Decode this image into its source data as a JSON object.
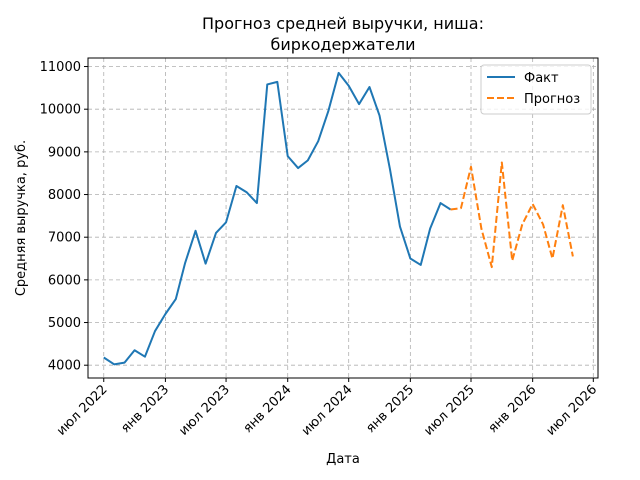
{
  "chart_data": {
    "type": "line",
    "title_lines": [
      "Прогноз средней выручки, ниша:",
      "биркодержатели"
    ],
    "xlabel": "Дата",
    "ylabel": "Средняя выручка, руб.",
    "ylim": [
      3700,
      11200
    ],
    "yticks": [
      4000,
      5000,
      6000,
      7000,
      8000,
      9000,
      10000,
      11000
    ],
    "xlim": [
      "2022-05-15",
      "2026-07-15"
    ],
    "xticks": [
      {
        "date": "2022-07-01",
        "label": "июл 2022"
      },
      {
        "date": "2023-01-01",
        "label": "янв 2023"
      },
      {
        "date": "2023-07-01",
        "label": "июл 2023"
      },
      {
        "date": "2024-01-01",
        "label": "янв 2024"
      },
      {
        "date": "2024-07-01",
        "label": "июл 2024"
      },
      {
        "date": "2025-01-01",
        "label": "янв 2025"
      },
      {
        "date": "2025-07-01",
        "label": "июл 2025"
      },
      {
        "date": "2026-01-01",
        "label": "янв 2026"
      },
      {
        "date": "2026-07-01",
        "label": "июл 2026"
      }
    ],
    "grid": true,
    "legend_position": "top-right",
    "series": [
      {
        "name": "Факт",
        "color": "#1f77b4",
        "style": "solid",
        "points": [
          {
            "x": "2022-07-01",
            "y": 4180
          },
          {
            "x": "2022-08-01",
            "y": 4020
          },
          {
            "x": "2022-09-01",
            "y": 4060
          },
          {
            "x": "2022-10-01",
            "y": 4350
          },
          {
            "x": "2022-11-01",
            "y": 4200
          },
          {
            "x": "2022-12-01",
            "y": 4800
          },
          {
            "x": "2023-01-01",
            "y": 5200
          },
          {
            "x": "2023-02-01",
            "y": 5550
          },
          {
            "x": "2023-03-01",
            "y": 6400
          },
          {
            "x": "2023-04-01",
            "y": 7150
          },
          {
            "x": "2023-05-01",
            "y": 6380
          },
          {
            "x": "2023-06-01",
            "y": 7100
          },
          {
            "x": "2023-07-01",
            "y": 7350
          },
          {
            "x": "2023-08-01",
            "y": 8200
          },
          {
            "x": "2023-09-01",
            "y": 8050
          },
          {
            "x": "2023-10-01",
            "y": 7800
          },
          {
            "x": "2023-11-01",
            "y": 10580
          },
          {
            "x": "2023-12-01",
            "y": 10640
          },
          {
            "x": "2024-01-01",
            "y": 8900
          },
          {
            "x": "2024-02-01",
            "y": 8620
          },
          {
            "x": "2024-03-01",
            "y": 8800
          },
          {
            "x": "2024-04-01",
            "y": 9250
          },
          {
            "x": "2024-05-01",
            "y": 9950
          },
          {
            "x": "2024-06-01",
            "y": 10850
          },
          {
            "x": "2024-07-01",
            "y": 10550
          },
          {
            "x": "2024-08-01",
            "y": 10120
          },
          {
            "x": "2024-09-01",
            "y": 10520
          },
          {
            "x": "2024-10-01",
            "y": 9850
          },
          {
            "x": "2024-11-01",
            "y": 8600
          },
          {
            "x": "2024-12-01",
            "y": 7250
          },
          {
            "x": "2025-01-01",
            "y": 6500
          },
          {
            "x": "2025-02-01",
            "y": 6350
          },
          {
            "x": "2025-03-01",
            "y": 7200
          },
          {
            "x": "2025-04-01",
            "y": 7800
          },
          {
            "x": "2025-05-01",
            "y": 7650
          }
        ]
      },
      {
        "name": "Прогноз",
        "color": "#ff7f0e",
        "style": "dashed",
        "points": [
          {
            "x": "2025-05-01",
            "y": 7650
          },
          {
            "x": "2025-06-01",
            "y": 7680
          },
          {
            "x": "2025-07-01",
            "y": 8650
          },
          {
            "x": "2025-08-01",
            "y": 7200
          },
          {
            "x": "2025-09-01",
            "y": 6300
          },
          {
            "x": "2025-10-01",
            "y": 8750
          },
          {
            "x": "2025-11-01",
            "y": 6450
          },
          {
            "x": "2025-12-01",
            "y": 7300
          },
          {
            "x": "2026-01-01",
            "y": 7780
          },
          {
            "x": "2026-02-01",
            "y": 7300
          },
          {
            "x": "2026-03-01",
            "y": 6500
          },
          {
            "x": "2026-04-01",
            "y": 7750
          },
          {
            "x": "2026-05-01",
            "y": 6550
          }
        ]
      }
    ]
  }
}
